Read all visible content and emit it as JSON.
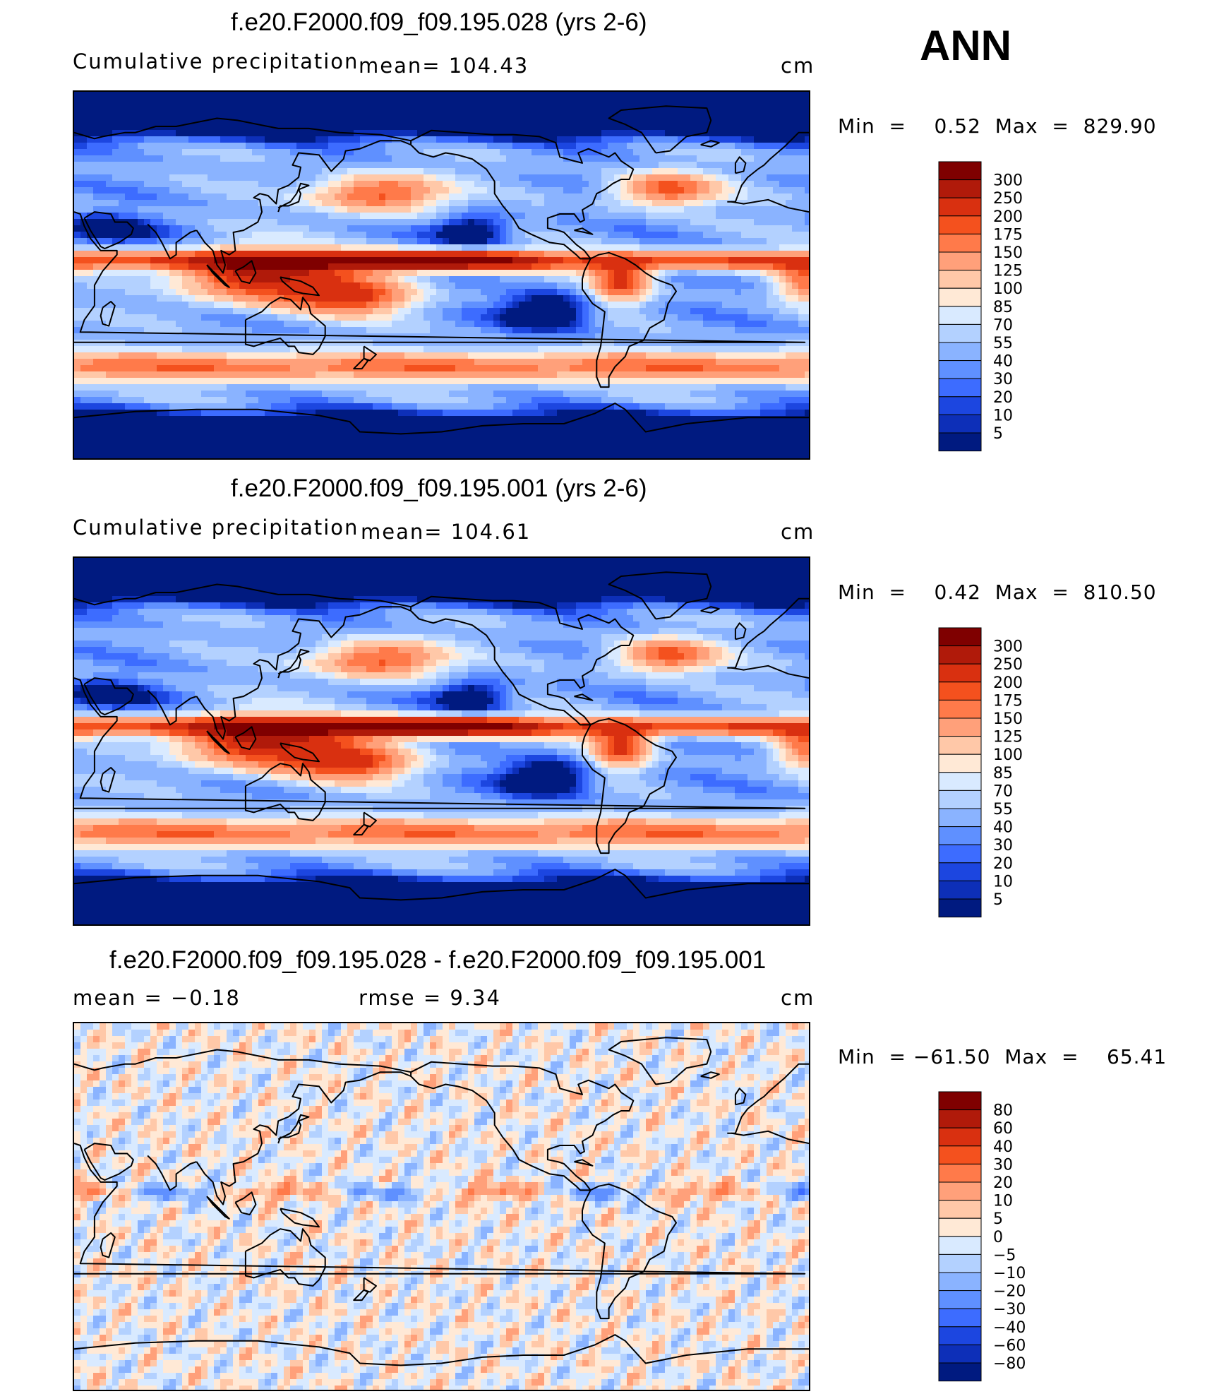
{
  "season": "ANN",
  "panels": [
    {
      "title": "f.e20.F2000.f09_f09.195.028 (yrs 2-6)",
      "left_label": "Cumulative precipitation",
      "center_label": "mean=  104.43",
      "units": "cm",
      "minmax": "Min  =    0.52  Max  =  829.90",
      "levels": [
        "300",
        "250",
        "200",
        "175",
        "150",
        "125",
        "100",
        "85",
        "70",
        "55",
        "40",
        "30",
        "20",
        "10",
        "5"
      ],
      "colors": [
        "#7f0000",
        "#b01a0a",
        "#d93010",
        "#f4511e",
        "#ff7a4a",
        "#ffa07a",
        "#ffc8a8",
        "#ffe9d6",
        "#d9eaff",
        "#b3d1ff",
        "#8ab3ff",
        "#5f90ff",
        "#3d6cff",
        "#1c46e0",
        "#0d2fb8",
        "#001a80"
      ],
      "map": "precip"
    },
    {
      "title": "f.e20.F2000.f09_f09.195.001 (yrs 2-6)",
      "left_label": "Cumulative precipitation",
      "center_label": "mean=  104.61",
      "units": "cm",
      "minmax": "Min  =    0.42  Max  =  810.50",
      "levels": [
        "300",
        "250",
        "200",
        "175",
        "150",
        "125",
        "100",
        "85",
        "70",
        "55",
        "40",
        "30",
        "20",
        "10",
        "5"
      ],
      "colors": [
        "#7f0000",
        "#b01a0a",
        "#d93010",
        "#f4511e",
        "#ff7a4a",
        "#ffa07a",
        "#ffc8a8",
        "#ffe9d6",
        "#d9eaff",
        "#b3d1ff",
        "#8ab3ff",
        "#5f90ff",
        "#3d6cff",
        "#1c46e0",
        "#0d2fb8",
        "#001a80"
      ],
      "map": "precip"
    },
    {
      "title": "f.e20.F2000.f09_f09.195.028 - f.e20.F2000.f09_f09.195.001",
      "left_label": "mean  =    −0.18",
      "center_label": "rmse  =      9.34",
      "units": "cm",
      "minmax": "Min  = −61.50  Max  =    65.41",
      "levels": [
        "80",
        "60",
        "40",
        "30",
        "20",
        "10",
        "5",
        "0",
        "−5",
        "−10",
        "−20",
        "−30",
        "−40",
        "−60",
        "−80"
      ],
      "colors": [
        "#7f0000",
        "#b01a0a",
        "#d93010",
        "#f4511e",
        "#ff7a4a",
        "#ffa07a",
        "#ffc8a8",
        "#ffe9d6",
        "#d9eaff",
        "#b3d1ff",
        "#8ab3ff",
        "#5f90ff",
        "#3d6cff",
        "#1c46e0",
        "#0d2fb8",
        "#001a80"
      ],
      "map": "diff"
    }
  ]
}
